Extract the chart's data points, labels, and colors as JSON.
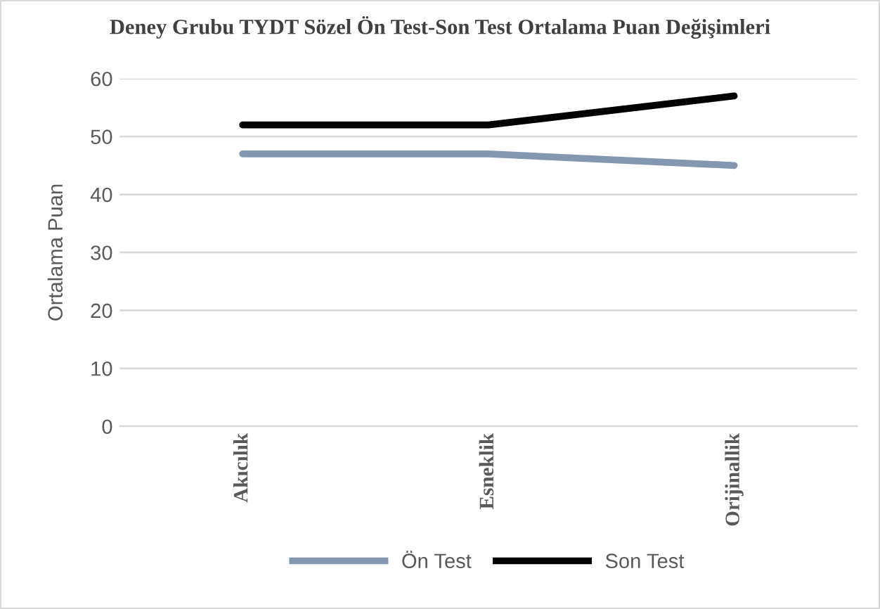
{
  "chart_data": {
    "type": "line",
    "title": "Deney Grubu TYDT Sözel Ön Test-Son Test Ortalama Puan Değişimleri",
    "ylabel": "Ortalama Puan",
    "categories": [
      "Akıcılık",
      "Esneklik",
      "Orijinallik"
    ],
    "series": [
      {
        "name": "Ön Test",
        "color": "#8497b0",
        "values": [
          47,
          47,
          45
        ]
      },
      {
        "name": "Son Test",
        "color": "#000000",
        "values": [
          52,
          52,
          57
        ]
      }
    ],
    "ylim": [
      0,
      60
    ],
    "yticks": [
      0,
      10,
      20,
      30,
      40,
      50,
      60
    ],
    "grid": "y",
    "legend": "bottom",
    "marker": "none",
    "line_style": "solid"
  }
}
